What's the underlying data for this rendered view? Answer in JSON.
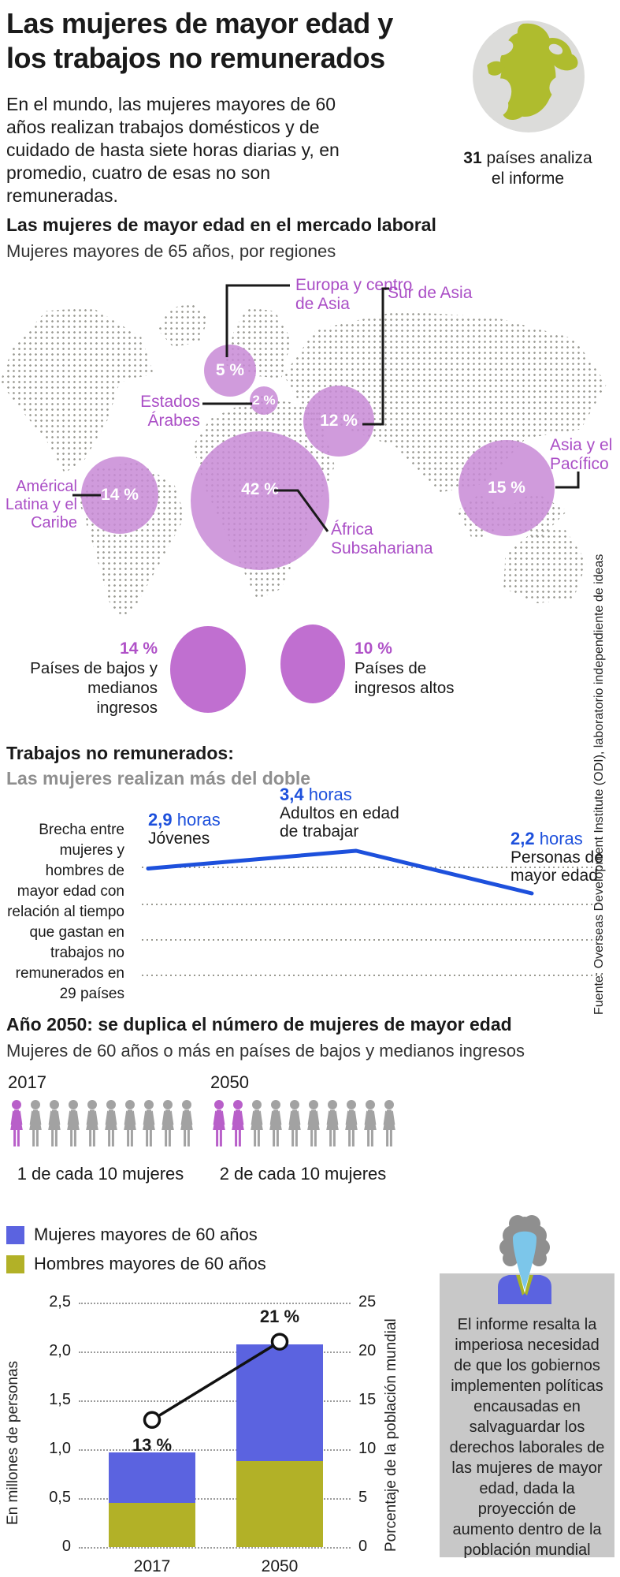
{
  "header": {
    "title": "Las mujeres de mayor edad y los trabajos no remunerados",
    "intro": "En el mundo, las mujeres mayores de 60 años realizan trabajos domésticos y de cuidado de hasta siete horas diarias y, en promedio, cuatro de esas no son remuneradas.",
    "globe_stat_number": "31",
    "globe_stat_text": " países analiza el informe"
  },
  "market": {
    "heading": "Las mujeres de mayor edad en el mercado laboral",
    "subheading": "Mujeres mayores de 65 años, por regiones",
    "bubbles": [
      {
        "region": "Europa y centro de Asia",
        "value": "5 %"
      },
      {
        "region": "Estados Árabes",
        "value": "2 %"
      },
      {
        "region": "Sur de Asia",
        "value": "12 %"
      },
      {
        "region": "África Subsahariana",
        "value": "42 %"
      },
      {
        "region": "Asia y el Pacífico",
        "value": "15 %"
      },
      {
        "region": "Américal Latina y el Caribe",
        "value": "14 %"
      }
    ],
    "income_circles": [
      {
        "value": "14 %",
        "label": "Países de bajos y medianos ingresos"
      },
      {
        "value": "10 %",
        "label": "Países de ingresos altos"
      }
    ]
  },
  "unpaid": {
    "heading": "Trabajos no remunerados:",
    "subheading": "Las mujeres realizan más del doble",
    "caption": "Brecha entre mujeres y hombres de mayor edad con relación al tiempo que gastan en trabajos no remunerados en 29 países",
    "points": [
      {
        "value": "2,9",
        "unit": "horas",
        "label": "Jóvenes"
      },
      {
        "value": "3,4",
        "unit": "horas",
        "label": "Adultos en edad de trabajar"
      },
      {
        "value": "2,2",
        "unit": "horas",
        "label": "Personas de mayor edad"
      }
    ]
  },
  "y2050": {
    "heading": "Año 2050: se duplica el número de mujeres de mayor edad",
    "subheading": "Mujeres de 60 años o más en países de bajos y medianos ingresos",
    "groups": [
      {
        "year": "2017",
        "highlighted": 1,
        "total": 10,
        "caption": "1 de cada 10 mujeres"
      },
      {
        "year": "2050",
        "highlighted": 2,
        "total": 10,
        "caption": "2 de cada 10 mujeres"
      }
    ]
  },
  "barchart": {
    "legend": [
      {
        "label": "Mujeres mayores de 60 años",
        "color": "#5b63e0"
      },
      {
        "label": "Hombres mayores de 60 años",
        "color": "#b2b127"
      }
    ],
    "left_axis_title": "En millones de personas",
    "right_axis_title": "Porcentaje de la población mundial",
    "left_ticks": [
      "2,5",
      "2,0",
      "1,5",
      "1,0",
      "0,5",
      "0"
    ],
    "right_ticks": [
      "25",
      "20",
      "15",
      "10",
      "5",
      "0"
    ],
    "categories": [
      "2017",
      "2050"
    ],
    "pct_labels": [
      "13 %",
      "21 %"
    ]
  },
  "note": {
    "text": "El informe resalta la imperiosa necesidad de que los gobiernos implementen políticas encausadas en salvaguardar los derechos laborales de las mujeres de mayor edad, dada la proyección de aumento dentro de la población mundial"
  },
  "source": "Fuente: Overseas Development Institute (ODI), laboratorio independiente de ideas",
  "colors": {
    "bubble_purple": "#c88ad6",
    "label_purple": "#aa4ec6",
    "pictogram_purple": "#b85fc9",
    "pictogram_gray": "#a2a2a2",
    "line_blue": "#1d50dc",
    "bar_blue": "#5b63e0",
    "olive": "#b2b127",
    "map_dot_gray": "#9a9a93",
    "panel_gray": "#c8c8c8"
  },
  "chart_data": [
    {
      "type": "bubble",
      "subtype": "map-bubbles",
      "title": "Las mujeres de mayor edad en el mercado laboral",
      "subtitle": "Mujeres mayores de 65 años, por regiones",
      "unit": "%",
      "points": [
        {
          "label": "Europa y centro de Asia",
          "value": 5
        },
        {
          "label": "Estados Árabes",
          "value": 2
        },
        {
          "label": "Sur de Asia",
          "value": 12
        },
        {
          "label": "África Subsahariana",
          "value": 42
        },
        {
          "label": "Asia y el Pacífico",
          "value": 15
        },
        {
          "label": "Américal Latina y el Caribe",
          "value": 14
        }
      ]
    },
    {
      "type": "bubble",
      "subtype": "income-comparison",
      "unit": "%",
      "points": [
        {
          "label": "Países de bajos y medianos ingresos",
          "value": 14
        },
        {
          "label": "Países de ingresos altos",
          "value": 10
        }
      ]
    },
    {
      "type": "line",
      "title": "Trabajos no remunerados: Las mujeres realizan más del doble",
      "annotation": "Brecha entre mujeres y hombres de mayor edad con relación al tiempo que gastan en trabajos no remunerados en 29 países",
      "categories": [
        "Jóvenes",
        "Adultos en edad de trabajar",
        "Personas de mayor edad"
      ],
      "values": [
        2.9,
        3.4,
        2.2
      ],
      "unit": "horas",
      "grid": "dotted-horizontal"
    },
    {
      "type": "pictogram",
      "title": "Año 2050: se duplica el número de mujeres de mayor edad",
      "subtitle": "Mujeres de 60 años o más en países de bajos y medianos ingresos",
      "groups": [
        {
          "year": "2017",
          "highlighted": 1,
          "total": 10,
          "caption": "1 de cada 10 mujeres"
        },
        {
          "year": "2050",
          "highlighted": 2,
          "total": 10,
          "caption": "2 de cada 10 mujeres"
        }
      ]
    },
    {
      "type": "bar",
      "subtype": "stacked-with-percentage-line",
      "categories": [
        "2017",
        "2050"
      ],
      "series": [
        {
          "name": "Hombres mayores de 60 años",
          "values": [
            0.45,
            0.88
          ],
          "color": "#b2b127"
        },
        {
          "name": "Mujeres mayores de 60 años",
          "values": [
            0.52,
            1.19
          ],
          "color": "#5b63e0"
        }
      ],
      "line_series": {
        "name": "Porcentaje de la población mundial",
        "values": [
          13,
          21
        ]
      },
      "ylabel_left": "En millones de personas",
      "ylabel_right": "Porcentaje de la población mundial",
      "ylim_left": [
        0,
        2.5
      ],
      "ylim_right": [
        0,
        25
      ],
      "grid": "dotted-horizontal"
    }
  ]
}
